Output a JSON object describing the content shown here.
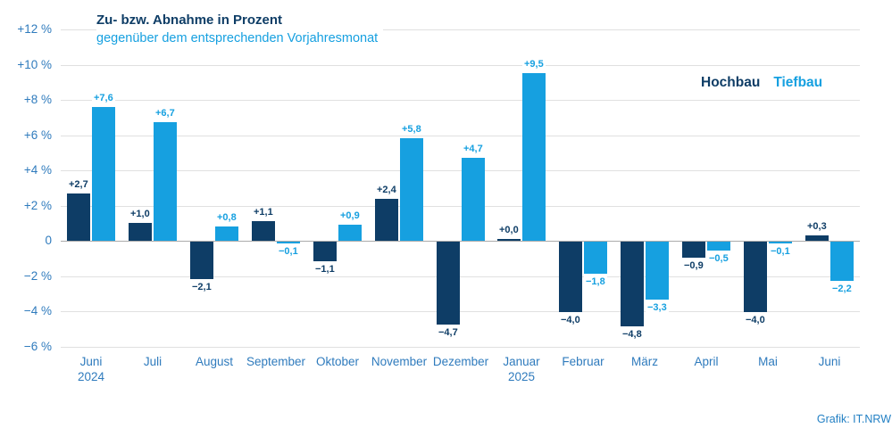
{
  "header": {
    "title": "Zu- bzw. Abnahme in Prozent",
    "subtitle": "gegenüber dem entsprechenden Vorjahresmonat"
  },
  "legend": {
    "items": [
      {
        "label": "Hochbau",
        "color": "#0e3d66"
      },
      {
        "label": "Tiefbau",
        "color": "#16a0e0"
      }
    ],
    "position": "top-right"
  },
  "footer": {
    "credit": "Grafik: IT.NRW"
  },
  "colors": {
    "hochbau": "#0e3d66",
    "tiefbau": "#16a0e0",
    "axis_text": "#2f7bbd",
    "gridline": "#e0e0e0",
    "zero_line": "#ababab",
    "background": "#ffffff"
  },
  "chart_data": {
    "type": "bar",
    "title": "Zu- bzw. Abnahme in Prozent",
    "subtitle": "gegenüber dem entsprechenden Vorjahresmonat",
    "xlabel": "",
    "ylabel": "",
    "ylim": [
      -6,
      12
    ],
    "grid": true,
    "legend_position": "top-right",
    "categories": [
      "Juni 2024",
      "Juli",
      "August",
      "September",
      "Oktober",
      "November",
      "Dezember",
      "Januar 2025",
      "Februar",
      "März",
      "April",
      "Mai",
      "Juni"
    ],
    "category_lines": [
      [
        "Juni",
        "2024"
      ],
      [
        "Juli"
      ],
      [
        "August"
      ],
      [
        "September"
      ],
      [
        "Oktober"
      ],
      [
        "November"
      ],
      [
        "Dezember"
      ],
      [
        "Januar",
        "2025"
      ],
      [
        "Februar"
      ],
      [
        "März"
      ],
      [
        "April"
      ],
      [
        "Mai"
      ],
      [
        "Juni"
      ]
    ],
    "series": [
      {
        "name": "Hochbau",
        "color": "#0e3d66",
        "values": [
          2.7,
          1.0,
          -2.1,
          1.1,
          -1.1,
          2.4,
          -4.7,
          0.0,
          -4.0,
          -4.8,
          -0.9,
          -4.0,
          0.3
        ],
        "labels": [
          "+2,7",
          "+1,0",
          "−2,1",
          "+1,1",
          "−1,1",
          "+2,4",
          "−4,7",
          "+0,0",
          "−4,0",
          "−4,8",
          "−0,9",
          "−4,0",
          "+0,3"
        ]
      },
      {
        "name": "Tiefbau",
        "color": "#16a0e0",
        "values": [
          7.6,
          6.7,
          0.8,
          -0.1,
          0.9,
          5.8,
          4.7,
          9.5,
          -1.8,
          -3.3,
          -0.5,
          -0.1,
          -2.2
        ],
        "labels": [
          "+7,6",
          "+6,7",
          "+0,8",
          "−0,1",
          "+0,9",
          "+5,8",
          "+4,7",
          "+9,5",
          "−1,8",
          "−3,3",
          "−0,5",
          "−0,1",
          "−2,2"
        ]
      }
    ],
    "yticks": [
      {
        "value": 12,
        "label": "+12 %"
      },
      {
        "value": 10,
        "label": "+10 %"
      },
      {
        "value": 8,
        "label": "+8 %"
      },
      {
        "value": 6,
        "label": "+6 %"
      },
      {
        "value": 4,
        "label": "+4 %"
      },
      {
        "value": 2,
        "label": "+2 %"
      },
      {
        "value": 0,
        "label": "0"
      },
      {
        "value": -2,
        "label": "−2 %"
      },
      {
        "value": -4,
        "label": "−4 %"
      },
      {
        "value": -6,
        "label": "−6 %"
      }
    ]
  }
}
